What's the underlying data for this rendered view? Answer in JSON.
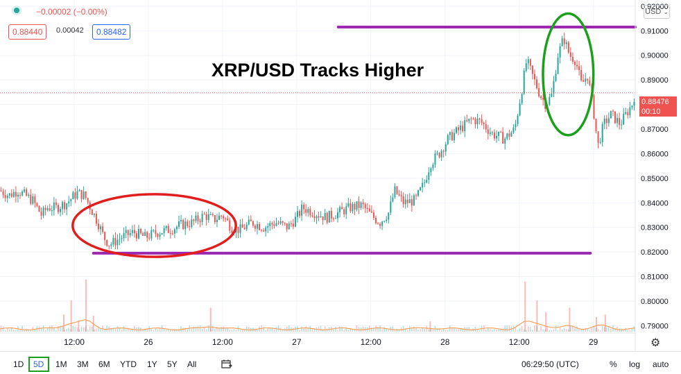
{
  "header": {
    "change_text": "−0.00002 (−0.00%)",
    "bid": "0.88440",
    "spread": "0.00042",
    "ask": "0.88482",
    "currency": "USD",
    "currency_caret": "⌄"
  },
  "annotation": {
    "title": "XRP/USD Tracks Higher"
  },
  "price_tag": {
    "price": "0.88476",
    "countdown": "00:10"
  },
  "toolbar": {
    "ranges": [
      "1D",
      "5D",
      "1M",
      "3M",
      "6M",
      "YTD",
      "1Y",
      "5Y",
      "All"
    ],
    "selected_range": "5D",
    "time": "06:29:50 (UTC)",
    "percent": "%",
    "log": "log",
    "auto": "auto",
    "settings_icon": "gear-icon",
    "calendar_icon": "date-range-icon"
  },
  "colors": {
    "up": "#26a69a",
    "down": "#ef5350",
    "level_line": "#9c27b0",
    "red_ellipse": "#e01e1e",
    "green_ellipse": "#1aa01a",
    "volume_line": "#f5a25d"
  },
  "chart_data": {
    "type": "candlestick",
    "symbol": "XRP/USD",
    "y_ticks": [
      0.79,
      0.8,
      0.81,
      0.82,
      0.83,
      0.84,
      0.85,
      0.86,
      0.87,
      0.88,
      0.89,
      0.9,
      0.91,
      0.92
    ],
    "y_tick_labels": [
      "0.79000",
      "0.80000",
      "0.81000",
      "0.82000",
      "0.83000",
      "0.84000",
      "0.85000",
      "0.86000",
      "0.87000",
      "0.88000",
      "0.89000",
      "0.90000",
      "0.91000",
      "0.92000"
    ],
    "ylim": [
      0.787,
      0.9225
    ],
    "x_ticks": [
      {
        "label": "12:00",
        "t": 0.5
      },
      {
        "label": "26",
        "t": 1.0
      },
      {
        "label": "12:00",
        "t": 1.5
      },
      {
        "label": "27",
        "t": 2.0
      },
      {
        "label": "12:00",
        "t": 2.5
      },
      {
        "label": "28",
        "t": 3.0
      },
      {
        "label": "12:00",
        "t": 3.5
      },
      {
        "label": "29",
        "t": 4.0
      }
    ],
    "xlim": [
      0.0,
      4.282
    ],
    "current_price": 0.88476,
    "support_level": 0.8195,
    "resistance_level": 0.9115,
    "price_path": [
      [
        0.0,
        0.845
      ],
      [
        0.06,
        0.843
      ],
      [
        0.12,
        0.845
      ],
      [
        0.17,
        0.843
      ],
      [
        0.22,
        0.841
      ],
      [
        0.28,
        0.835
      ],
      [
        0.32,
        0.838
      ],
      [
        0.38,
        0.838
      ],
      [
        0.45,
        0.84
      ],
      [
        0.52,
        0.844
      ],
      [
        0.57,
        0.843
      ],
      [
        0.61,
        0.838
      ],
      [
        0.66,
        0.832
      ],
      [
        0.7,
        0.826
      ],
      [
        0.74,
        0.823
      ],
      [
        0.82,
        0.826
      ],
      [
        0.9,
        0.828
      ],
      [
        0.98,
        0.826
      ],
      [
        1.06,
        0.828
      ],
      [
        1.14,
        0.829
      ],
      [
        1.22,
        0.831
      ],
      [
        1.3,
        0.832
      ],
      [
        1.38,
        0.835
      ],
      [
        1.44,
        0.833
      ],
      [
        1.5,
        0.835
      ],
      [
        1.56,
        0.83
      ],
      [
        1.62,
        0.829
      ],
      [
        1.7,
        0.832
      ],
      [
        1.78,
        0.83
      ],
      [
        1.86,
        0.832
      ],
      [
        1.94,
        0.83
      ],
      [
        2.0,
        0.834
      ],
      [
        2.04,
        0.838
      ],
      [
        2.12,
        0.836
      ],
      [
        2.2,
        0.834
      ],
      [
        2.28,
        0.836
      ],
      [
        2.36,
        0.838
      ],
      [
        2.44,
        0.839
      ],
      [
        2.5,
        0.835
      ],
      [
        2.56,
        0.832
      ],
      [
        2.62,
        0.836
      ],
      [
        2.66,
        0.845
      ],
      [
        2.72,
        0.84
      ],
      [
        2.8,
        0.841
      ],
      [
        2.86,
        0.848
      ],
      [
        2.9,
        0.856
      ],
      [
        2.96,
        0.86
      ],
      [
        3.02,
        0.866
      ],
      [
        3.1,
        0.87
      ],
      [
        3.18,
        0.874
      ],
      [
        3.24,
        0.873
      ],
      [
        3.32,
        0.868
      ],
      [
        3.4,
        0.866
      ],
      [
        3.47,
        0.87
      ],
      [
        3.52,
        0.887
      ],
      [
        3.55,
        0.898
      ],
      [
        3.6,
        0.89
      ],
      [
        3.64,
        0.884
      ],
      [
        3.68,
        0.88
      ],
      [
        3.72,
        0.884
      ],
      [
        3.76,
        0.9
      ],
      [
        3.8,
        0.907
      ],
      [
        3.84,
        0.9
      ],
      [
        3.88,
        0.898
      ],
      [
        3.92,
        0.888
      ],
      [
        3.96,
        0.892
      ],
      [
        4.0,
        0.878
      ],
      [
        4.03,
        0.863
      ],
      [
        4.07,
        0.872
      ],
      [
        4.12,
        0.876
      ],
      [
        4.18,
        0.872
      ],
      [
        4.22,
        0.876
      ],
      [
        4.26,
        0.88
      ],
      [
        4.282,
        0.8847
      ]
    ],
    "volume_spikes": [
      [
        0.43,
        0.3
      ],
      [
        0.48,
        0.55
      ],
      [
        0.53,
        0.2
      ],
      [
        0.58,
        0.92
      ],
      [
        0.63,
        0.28
      ],
      [
        1.42,
        0.42
      ],
      [
        2.9,
        0.18
      ],
      [
        3.54,
        0.88
      ],
      [
        3.62,
        0.55
      ],
      [
        3.68,
        0.34
      ],
      [
        3.84,
        0.42
      ],
      [
        4.02,
        0.26
      ],
      [
        4.08,
        0.3
      ]
    ]
  }
}
